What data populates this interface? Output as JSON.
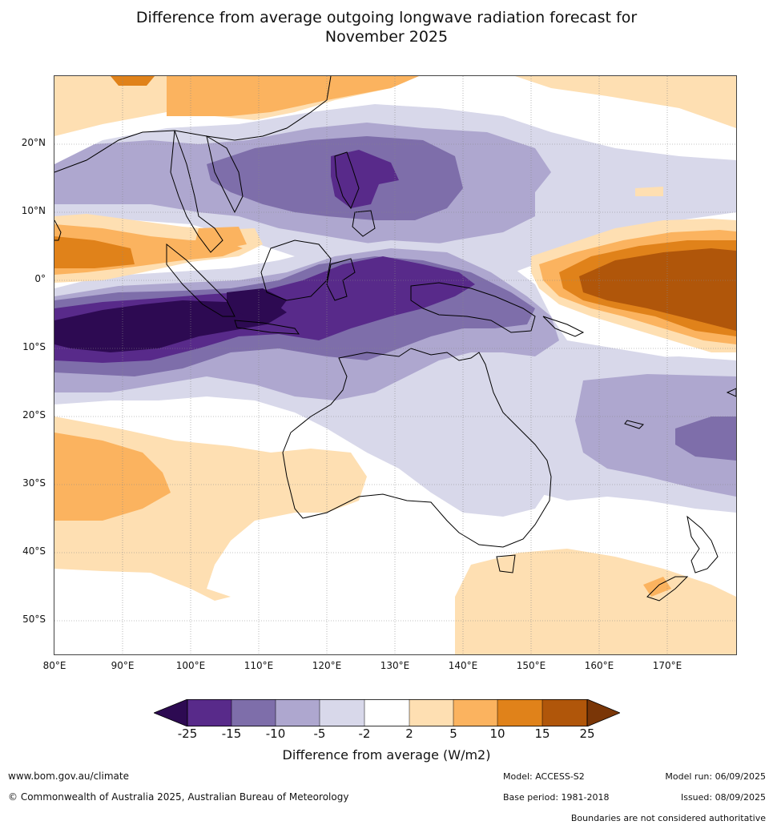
{
  "title_line1": "Difference from average outgoing longwave radiation forecast for",
  "title_line2": "November 2025",
  "lat_labels": [
    "20°N",
    "10°N",
    "0°",
    "10°S",
    "20°S",
    "30°S",
    "40°S",
    "50°S"
  ],
  "lon_labels": [
    "80°E",
    "90°E",
    "100°E",
    "110°E",
    "120°E",
    "130°E",
    "140°E",
    "150°E",
    "160°E",
    "170°E"
  ],
  "colorbar": {
    "ticks": [
      "-25",
      "-15",
      "-10",
      "-5",
      "-2",
      "2",
      "5",
      "10",
      "15",
      "25"
    ],
    "colors": [
      "#2d0a52",
      "#582a8a",
      "#7e6eaa",
      "#aea7cf",
      "#d8d8ea",
      "#ffffff",
      "#fedfb2",
      "#fbb35f",
      "#e0821a",
      "#b0560a",
      "#7a3607"
    ],
    "label": "Difference from average (W/m2)"
  },
  "footer": {
    "website": "www.bom.gov.au/climate",
    "copyright": "© Commonwealth of Australia 2025, Australian Bureau of Meteorology",
    "model": "Model: ACCESS-S2",
    "base_period": "Base period: 1981-2018",
    "model_run": "Model run: 06/09/2025",
    "issued": "Issued: 08/09/2025",
    "disclaimer": "Boundaries are not considered authoritative"
  }
}
